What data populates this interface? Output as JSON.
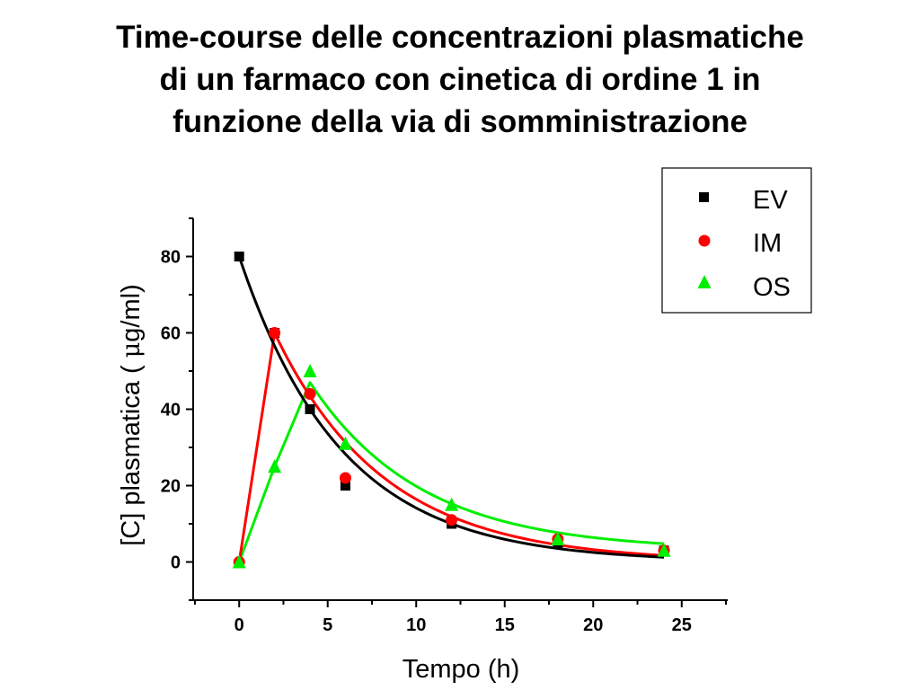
{
  "chart_data": {
    "type": "scatter",
    "title_lines": [
      "Time-course delle concentrazioni plasmatiche",
      "di un farmaco con cinetica di ordine 1 in",
      "funzione della via di somministrazione"
    ],
    "xlabel": "Tempo (h)",
    "ylabel_prefix": "[C] plasmatica  ( ",
    "ylabel_mu": "μ",
    "ylabel_suffix": "g/ml)",
    "xlim": [
      -2.6,
      27.6
    ],
    "ylim": [
      -10,
      90
    ],
    "xticks": [
      0,
      5,
      10,
      15,
      20,
      25
    ],
    "yticks": [
      0,
      20,
      40,
      60,
      80
    ],
    "x_minor_step": 2.5,
    "y_minor_step": 10,
    "grid": false,
    "legend": {
      "position": "top-right",
      "entries": [
        "EV",
        "IM",
        "OS"
      ]
    },
    "series": [
      {
        "name": "EV",
        "marker": "square",
        "color": "#000000",
        "points": [
          [
            0,
            80
          ],
          [
            2,
            60
          ],
          [
            4,
            40
          ],
          [
            6,
            20
          ],
          [
            12,
            10
          ],
          [
            18,
            5
          ],
          [
            24,
            3
          ]
        ],
        "fit": {
          "kind": "exp_decay",
          "c0": 80,
          "k": 0.1733
        }
      },
      {
        "name": "IM",
        "marker": "circle",
        "color": "#ff0000",
        "points": [
          [
            0,
            0
          ],
          [
            2,
            60
          ],
          [
            4,
            44
          ],
          [
            6,
            22
          ],
          [
            12,
            11
          ],
          [
            18,
            6
          ],
          [
            24,
            3
          ]
        ],
        "fit": {
          "kind": "rise_decay",
          "peak_x": 2,
          "peak_y": 60,
          "k": 0.162
        }
      },
      {
        "name": "OS",
        "marker": "triangle",
        "color": "#00ee00",
        "points": [
          [
            0,
            0
          ],
          [
            2,
            25
          ],
          [
            4,
            50
          ],
          [
            6,
            31
          ],
          [
            12,
            15
          ],
          [
            18,
            6
          ],
          [
            24,
            3
          ]
        ],
        "fit": {
          "kind": "rise_decay_offset",
          "peak_x": 4,
          "peak_y": 47,
          "k": 0.16,
          "offset": 3
        }
      }
    ]
  }
}
